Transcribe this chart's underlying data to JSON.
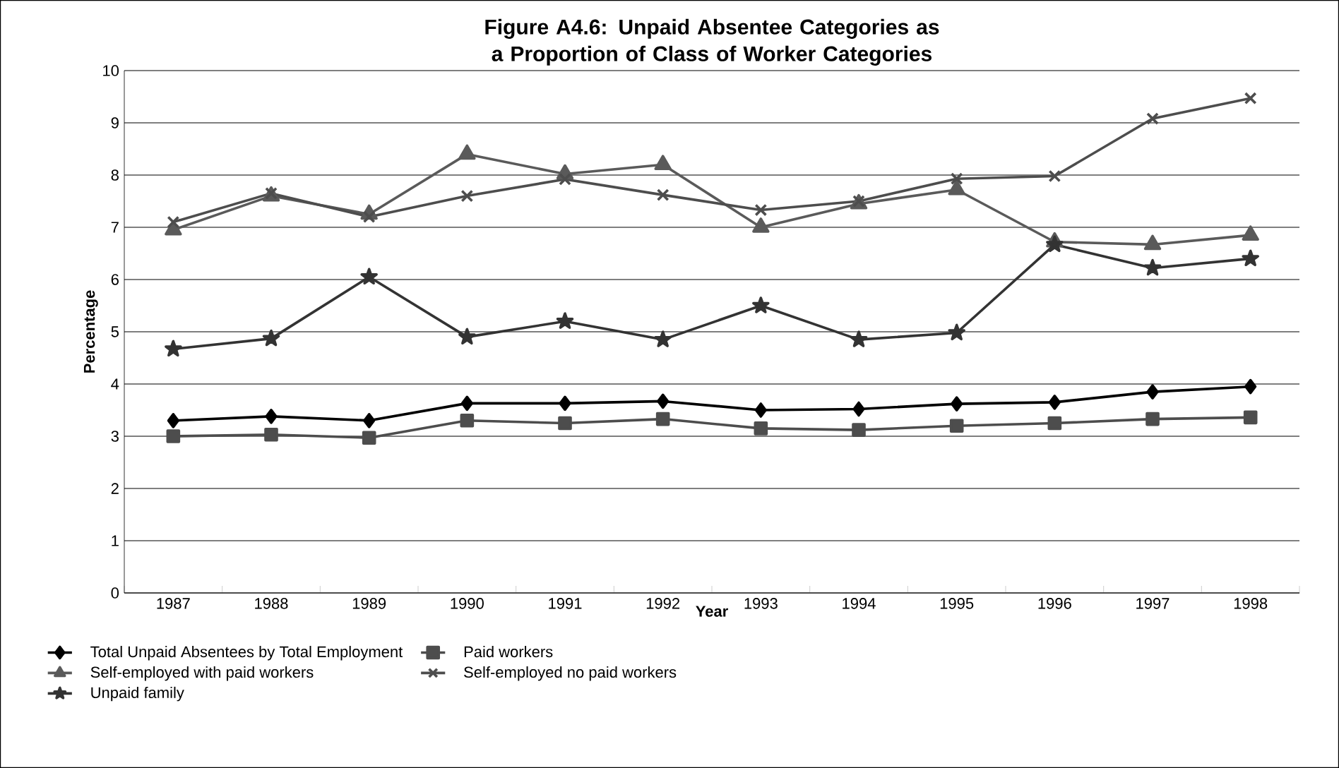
{
  "chart_data": {
    "type": "line",
    "title": "Figure A4.6:  Unpaid Absentee Categories as a Proportion of Class of Worker Categories",
    "xlabel": "Year",
    "ylabel": "Percentage",
    "categories": [
      "1987",
      "1988",
      "1989",
      "1990",
      "1991",
      "1992",
      "1993",
      "1994",
      "1995",
      "1996",
      "1997",
      "1998"
    ],
    "series": [
      {
        "name": "Total Unpaid Absentees by Total Employment",
        "color": "#000000",
        "marker": "diamond",
        "values": [
          3.3,
          3.38,
          3.3,
          3.63,
          3.63,
          3.67,
          3.5,
          3.52,
          3.62,
          3.65,
          3.85,
          3.95
        ]
      },
      {
        "name": "Paid workers",
        "color": "#4d4d4d",
        "marker": "square",
        "values": [
          3.0,
          3.03,
          2.97,
          3.3,
          3.25,
          3.33,
          3.15,
          3.12,
          3.2,
          3.25,
          3.33,
          3.36
        ]
      },
      {
        "name": "Self-employed with paid workers",
        "color": "#5a5a5a",
        "marker": "triangle",
        "values": [
          6.95,
          7.6,
          7.25,
          8.4,
          8.02,
          8.2,
          7.0,
          7.45,
          7.72,
          6.72,
          6.67,
          6.85
        ]
      },
      {
        "name": "Self-employed no paid workers",
        "color": "#4d4d4d",
        "marker": "cross",
        "values": [
          7.1,
          7.65,
          7.2,
          7.6,
          7.92,
          7.62,
          7.33,
          7.5,
          7.93,
          7.98,
          9.08,
          9.47
        ]
      },
      {
        "name": "Unpaid family",
        "color": "#333333",
        "marker": "star",
        "values": [
          4.67,
          4.87,
          6.05,
          4.9,
          5.2,
          4.85,
          5.5,
          4.85,
          4.98,
          6.67,
          6.22,
          6.4
        ]
      }
    ],
    "ylim": [
      0,
      10
    ],
    "yticks": [
      0,
      1,
      2,
      3,
      4,
      5,
      6,
      7,
      8,
      9,
      10
    ],
    "grid": "y",
    "legend": "bottom",
    "line_style": "solid"
  }
}
